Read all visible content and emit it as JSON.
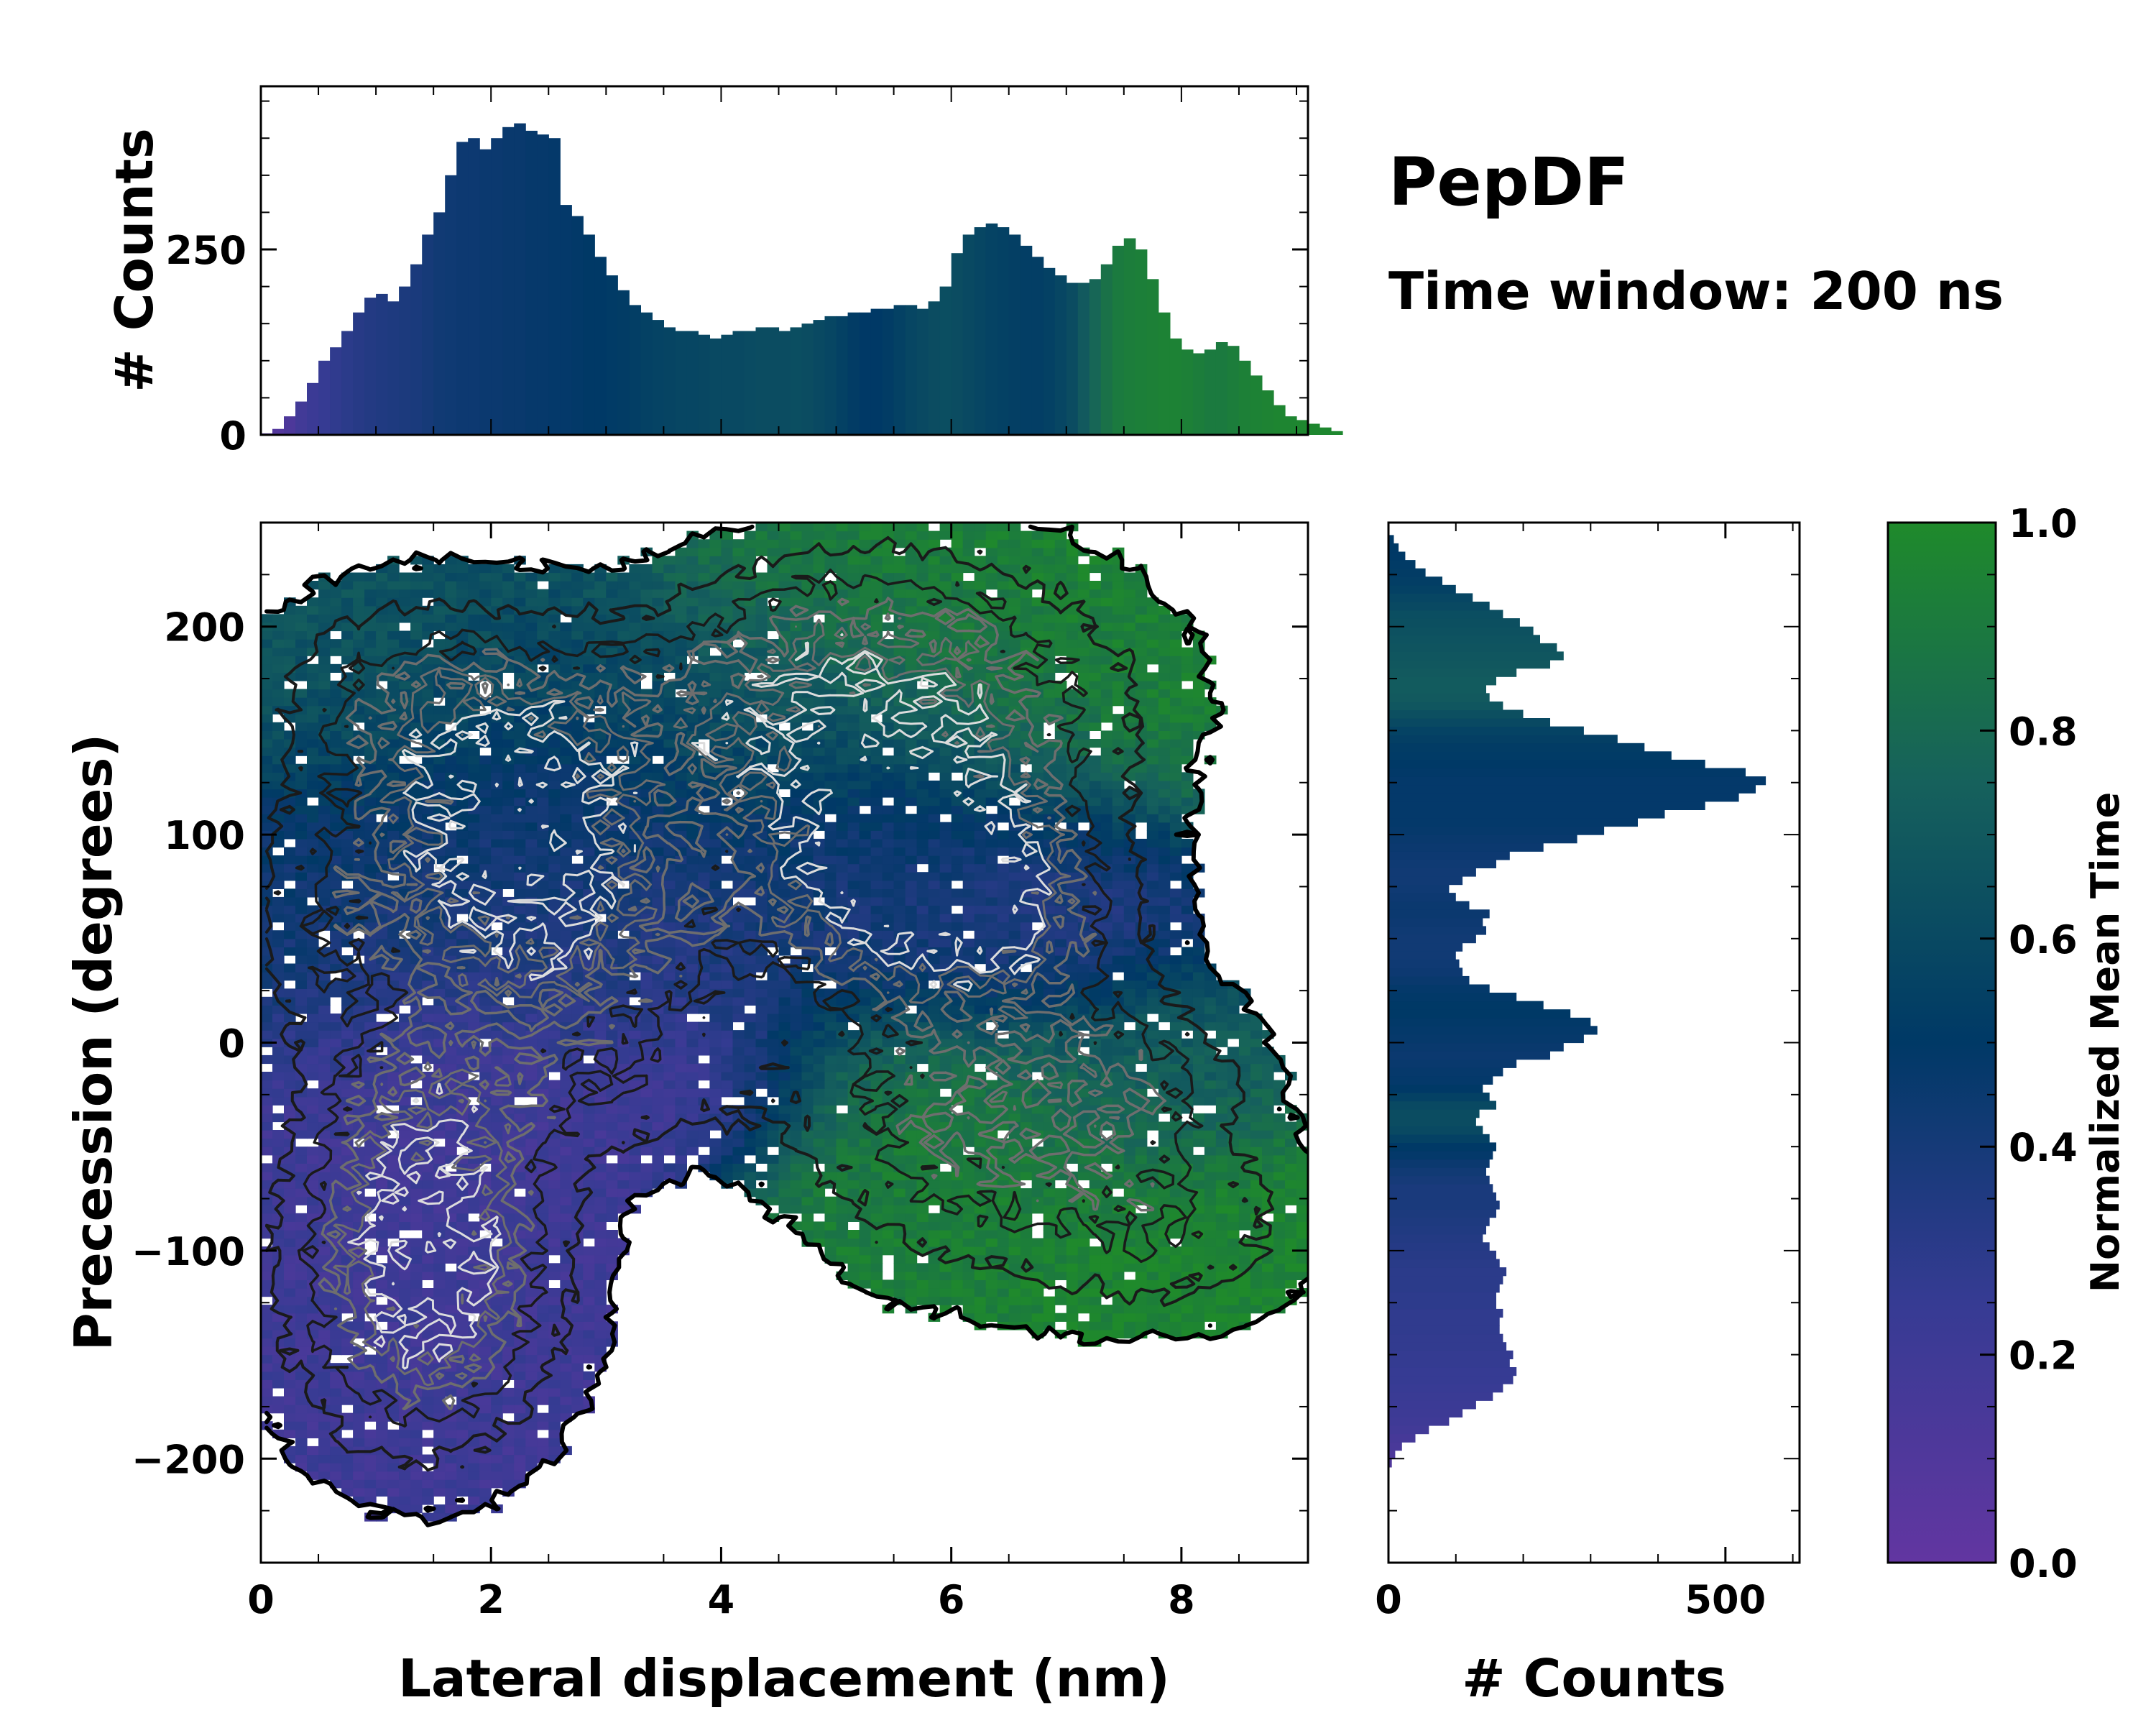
{
  "title": "PepDF",
  "subtitle": "Time window: 200 ns",
  "colors": {
    "cmap": [
      "#6236a1",
      "#363b93",
      "#003966",
      "#16615c",
      "#1f8a2b"
    ],
    "contour_dark": "#1a1a1a",
    "contour_mid": "#6e6e6e",
    "contour_light": "#dcdcdc"
  },
  "chart_data": [
    {
      "id": "main",
      "type": "heatmap",
      "xlabel": "Lateral displacement (nm)",
      "ylabel": "Precession (degrees)",
      "xlim": [
        0,
        9.1
      ],
      "ylim": [
        -250,
        250
      ],
      "xticks": [
        0,
        2,
        4,
        6,
        8
      ],
      "xtick_labels": [
        "0",
        "2",
        "4",
        "6",
        "8"
      ],
      "yticks": [
        -200,
        -100,
        0,
        100,
        200
      ],
      "ytick_labels": [
        "−200",
        "−100",
        "0",
        "100",
        "200"
      ],
      "clusters": [
        {
          "cx": 2.2,
          "cy": 95,
          "sx": 0.9,
          "sy": 45,
          "w": 1.0,
          "t": 0.42
        },
        {
          "cx": 1.4,
          "cy": -120,
          "sx": 0.75,
          "sy": 50,
          "w": 0.95,
          "t": 0.2
        },
        {
          "cx": 1.5,
          "cy": -35,
          "sx": 0.8,
          "sy": 45,
          "w": 0.55,
          "t": 0.2
        },
        {
          "cx": 3.1,
          "cy": 40,
          "sx": 1.0,
          "sy": 30,
          "w": 0.35,
          "t": 0.3
        },
        {
          "cx": 5.4,
          "cy": 90,
          "sx": 0.9,
          "sy": 40,
          "w": 0.95,
          "t": 0.4
        },
        {
          "cx": 6.4,
          "cy": 60,
          "sx": 0.8,
          "sy": 35,
          "w": 0.65,
          "t": 0.3
        },
        {
          "cx": 4.2,
          "cy": 160,
          "sx": 1.2,
          "sy": 35,
          "w": 0.55,
          "t": 0.62
        },
        {
          "cx": 1.4,
          "cy": 165,
          "sx": 0.9,
          "sy": 35,
          "w": 0.5,
          "t": 0.68
        },
        {
          "cx": 6.2,
          "cy": 165,
          "sx": 1.1,
          "sy": 45,
          "w": 0.5,
          "t": 0.95
        },
        {
          "cx": 6.0,
          "cy": -40,
          "sx": 0.9,
          "sy": 45,
          "w": 0.55,
          "t": 0.92
        },
        {
          "cx": 7.6,
          "cy": -20,
          "sx": 0.7,
          "sy": 30,
          "w": 0.45,
          "t": 0.72
        },
        {
          "cx": 7.8,
          "cy": -90,
          "sx": 0.9,
          "sy": 30,
          "w": 0.4,
          "t": 0.97
        },
        {
          "cx": 5.0,
          "cy": 210,
          "sx": 0.9,
          "sy": 25,
          "w": 0.25,
          "t": 0.95
        },
        {
          "cx": 3.4,
          "cy": -20,
          "sx": 0.9,
          "sy": 25,
          "w": 0.3,
          "t": 0.18
        },
        {
          "cx": 0.5,
          "cy": 60,
          "sx": 0.5,
          "sy": 40,
          "w": 0.3,
          "t": 0.45
        }
      ]
    },
    {
      "id": "top-histogram",
      "type": "bar",
      "ylabel": "# Counts",
      "xlim": [
        0,
        9.1
      ],
      "ylim": [
        0,
        470
      ],
      "yticks": [
        0,
        250
      ],
      "ytick_labels": [
        "0",
        "250"
      ],
      "bin_width": 0.1,
      "x_start": 0.0,
      "values": [
        2,
        8,
        25,
        45,
        70,
        100,
        118,
        140,
        165,
        185,
        190,
        180,
        200,
        230,
        270,
        300,
        350,
        395,
        400,
        385,
        400,
        415,
        420,
        410,
        405,
        400,
        310,
        295,
        270,
        240,
        215,
        195,
        175,
        165,
        155,
        145,
        140,
        140,
        135,
        130,
        135,
        140,
        140,
        145,
        145,
        140,
        145,
        150,
        155,
        160,
        160,
        165,
        165,
        170,
        170,
        175,
        175,
        170,
        180,
        200,
        245,
        270,
        280,
        285,
        280,
        270,
        255,
        240,
        225,
        215,
        205,
        205,
        210,
        230,
        255,
        265,
        250,
        210,
        165,
        130,
        115,
        110,
        115,
        125,
        120,
        100,
        80,
        60,
        40,
        25,
        20,
        15,
        10,
        5
      ],
      "mean_time": [
        0.05,
        0.08,
        0.12,
        0.18,
        0.22,
        0.25,
        0.28,
        0.3,
        0.32,
        0.34,
        0.35,
        0.36,
        0.37,
        0.38,
        0.4,
        0.42,
        0.43,
        0.44,
        0.44,
        0.45,
        0.45,
        0.46,
        0.46,
        0.47,
        0.47,
        0.48,
        0.48,
        0.49,
        0.5,
        0.5,
        0.51,
        0.52,
        0.53,
        0.55,
        0.56,
        0.57,
        0.58,
        0.58,
        0.59,
        0.6,
        0.6,
        0.6,
        0.61,
        0.62,
        0.62,
        0.62,
        0.63,
        0.62,
        0.6,
        0.58,
        0.55,
        0.52,
        0.5,
        0.5,
        0.52,
        0.55,
        0.58,
        0.6,
        0.62,
        0.63,
        0.62,
        0.6,
        0.58,
        0.56,
        0.55,
        0.54,
        0.53,
        0.53,
        0.55,
        0.58,
        0.62,
        0.7,
        0.78,
        0.85,
        0.9,
        0.92,
        0.93,
        0.94,
        0.95,
        0.95,
        0.94,
        0.92,
        0.9,
        0.9,
        0.92,
        0.94,
        0.95,
        0.96,
        0.97,
        0.97,
        0.98,
        0.98,
        0.98,
        0.98
      ]
    },
    {
      "id": "right-histogram",
      "type": "bar",
      "orientation": "horizontal",
      "xlabel": "# Counts",
      "xlim": [
        0,
        610
      ],
      "xticks": [
        0,
        500
      ],
      "xtick_labels": [
        "0",
        "500"
      ],
      "ylim": [
        -250,
        250
      ],
      "bin_width": 4,
      "y_start": -204,
      "values": [
        5,
        10,
        20,
        40,
        60,
        90,
        110,
        130,
        155,
        170,
        185,
        190,
        180,
        185,
        175,
        170,
        165,
        165,
        170,
        160,
        160,
        165,
        170,
        175,
        165,
        160,
        150,
        140,
        145,
        150,
        160,
        165,
        160,
        155,
        150,
        145,
        150,
        155,
        160,
        150,
        140,
        130,
        135,
        160,
        150,
        140,
        155,
        170,
        190,
        240,
        260,
        290,
        310,
        300,
        270,
        230,
        190,
        150,
        120,
        110,
        105,
        100,
        110,
        130,
        145,
        140,
        150,
        120,
        100,
        90,
        110,
        130,
        160,
        180,
        230,
        280,
        320,
        370,
        410,
        470,
        520,
        545,
        560,
        530,
        470,
        420,
        380,
        340,
        290,
        240,
        200,
        170,
        150,
        145,
        160,
        190,
        240,
        260,
        250,
        225,
        215,
        195,
        170,
        150,
        125,
        100,
        80,
        55,
        40,
        25,
        15,
        8
      ],
      "mean_time": [
        0.1,
        0.12,
        0.14,
        0.16,
        0.18,
        0.2,
        0.21,
        0.22,
        0.23,
        0.24,
        0.25,
        0.25,
        0.26,
        0.26,
        0.27,
        0.27,
        0.28,
        0.28,
        0.28,
        0.29,
        0.29,
        0.3,
        0.3,
        0.3,
        0.31,
        0.32,
        0.33,
        0.34,
        0.35,
        0.36,
        0.37,
        0.38,
        0.38,
        0.38,
        0.4,
        0.42,
        0.45,
        0.48,
        0.5,
        0.55,
        0.6,
        0.62,
        0.62,
        0.6,
        0.55,
        0.5,
        0.48,
        0.47,
        0.46,
        0.45,
        0.46,
        0.47,
        0.48,
        0.49,
        0.5,
        0.5,
        0.49,
        0.48,
        0.46,
        0.44,
        0.43,
        0.42,
        0.42,
        0.42,
        0.43,
        0.44,
        0.45,
        0.45,
        0.44,
        0.43,
        0.42,
        0.42,
        0.43,
        0.44,
        0.45,
        0.46,
        0.47,
        0.48,
        0.48,
        0.48,
        0.48,
        0.48,
        0.48,
        0.49,
        0.5,
        0.51,
        0.52,
        0.54,
        0.56,
        0.6,
        0.64,
        0.68,
        0.7,
        0.71,
        0.71,
        0.7,
        0.69,
        0.68,
        0.67,
        0.66,
        0.65,
        0.64,
        0.63,
        0.6,
        0.58,
        0.55,
        0.53,
        0.52,
        0.51,
        0.5,
        0.5,
        0.5
      ]
    },
    {
      "id": "colorbar",
      "type": "colorbar",
      "label": "Normalized Mean Time",
      "range": [
        0,
        1
      ],
      "ticks": [
        0,
        0.2,
        0.4,
        0.6,
        0.8,
        1.0
      ],
      "tick_labels": [
        "0.0",
        "0.2",
        "0.4",
        "0.6",
        "0.8",
        "1.0"
      ]
    }
  ]
}
